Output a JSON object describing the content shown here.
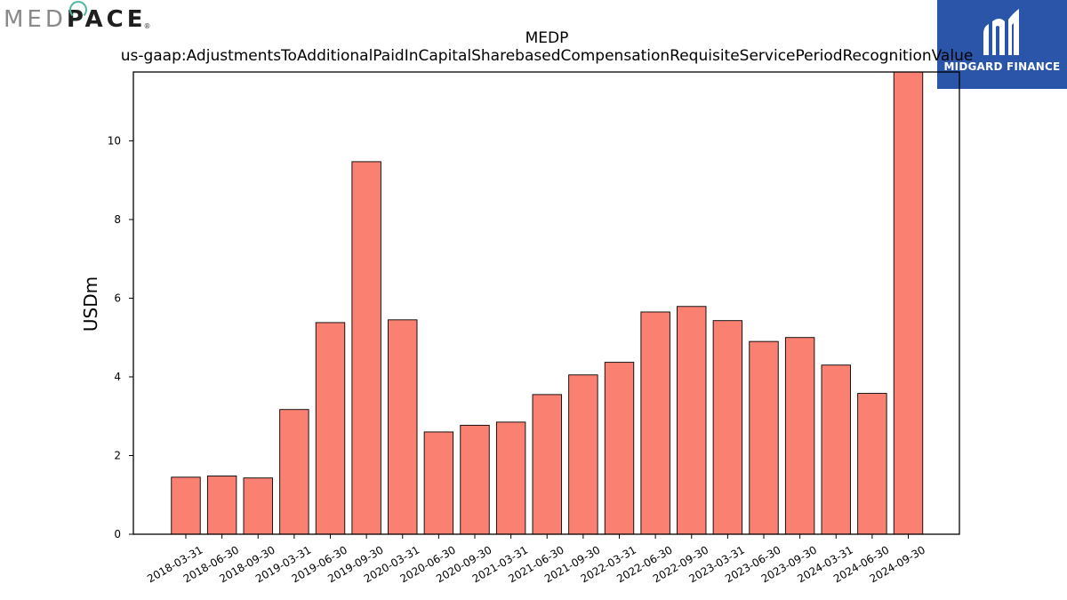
{
  "logos": {
    "medpace_light": "MED",
    "medpace_dark": "PACE",
    "medpace_reg": "®",
    "midgard_text": "MIDGARD FINANCE"
  },
  "chart_data": {
    "type": "bar",
    "title": "MEDP",
    "subtitle": "us-gaap:AdjustmentsToAdditionalPaidInCapitalSharebasedCompensationRequisiteServicePeriodRecognitionValue",
    "xlabel": "",
    "ylabel": "USDm",
    "ylim": [
      0,
      11.75
    ],
    "yticks": [
      0,
      2,
      4,
      6,
      8,
      10
    ],
    "grid": false,
    "bar_color": "#fa8072",
    "bar_edge": "#000000",
    "categories": [
      "2018-03-31",
      "2018-06-30",
      "2018-09-30",
      "2019-03-31",
      "2019-06-30",
      "2019-09-30",
      "2020-03-31",
      "2020-06-30",
      "2020-09-30",
      "2021-03-31",
      "2021-06-30",
      "2021-09-30",
      "2022-03-31",
      "2022-06-30",
      "2022-09-30",
      "2023-03-31",
      "2023-06-30",
      "2023-09-30",
      "2024-03-31",
      "2024-06-30",
      "2024-09-30"
    ],
    "values": [
      1.45,
      1.48,
      1.43,
      3.17,
      5.38,
      9.47,
      5.45,
      2.6,
      2.77,
      2.85,
      3.55,
      4.05,
      4.37,
      5.65,
      5.79,
      5.43,
      4.9,
      5.0,
      4.3,
      3.58,
      11.75
    ]
  }
}
